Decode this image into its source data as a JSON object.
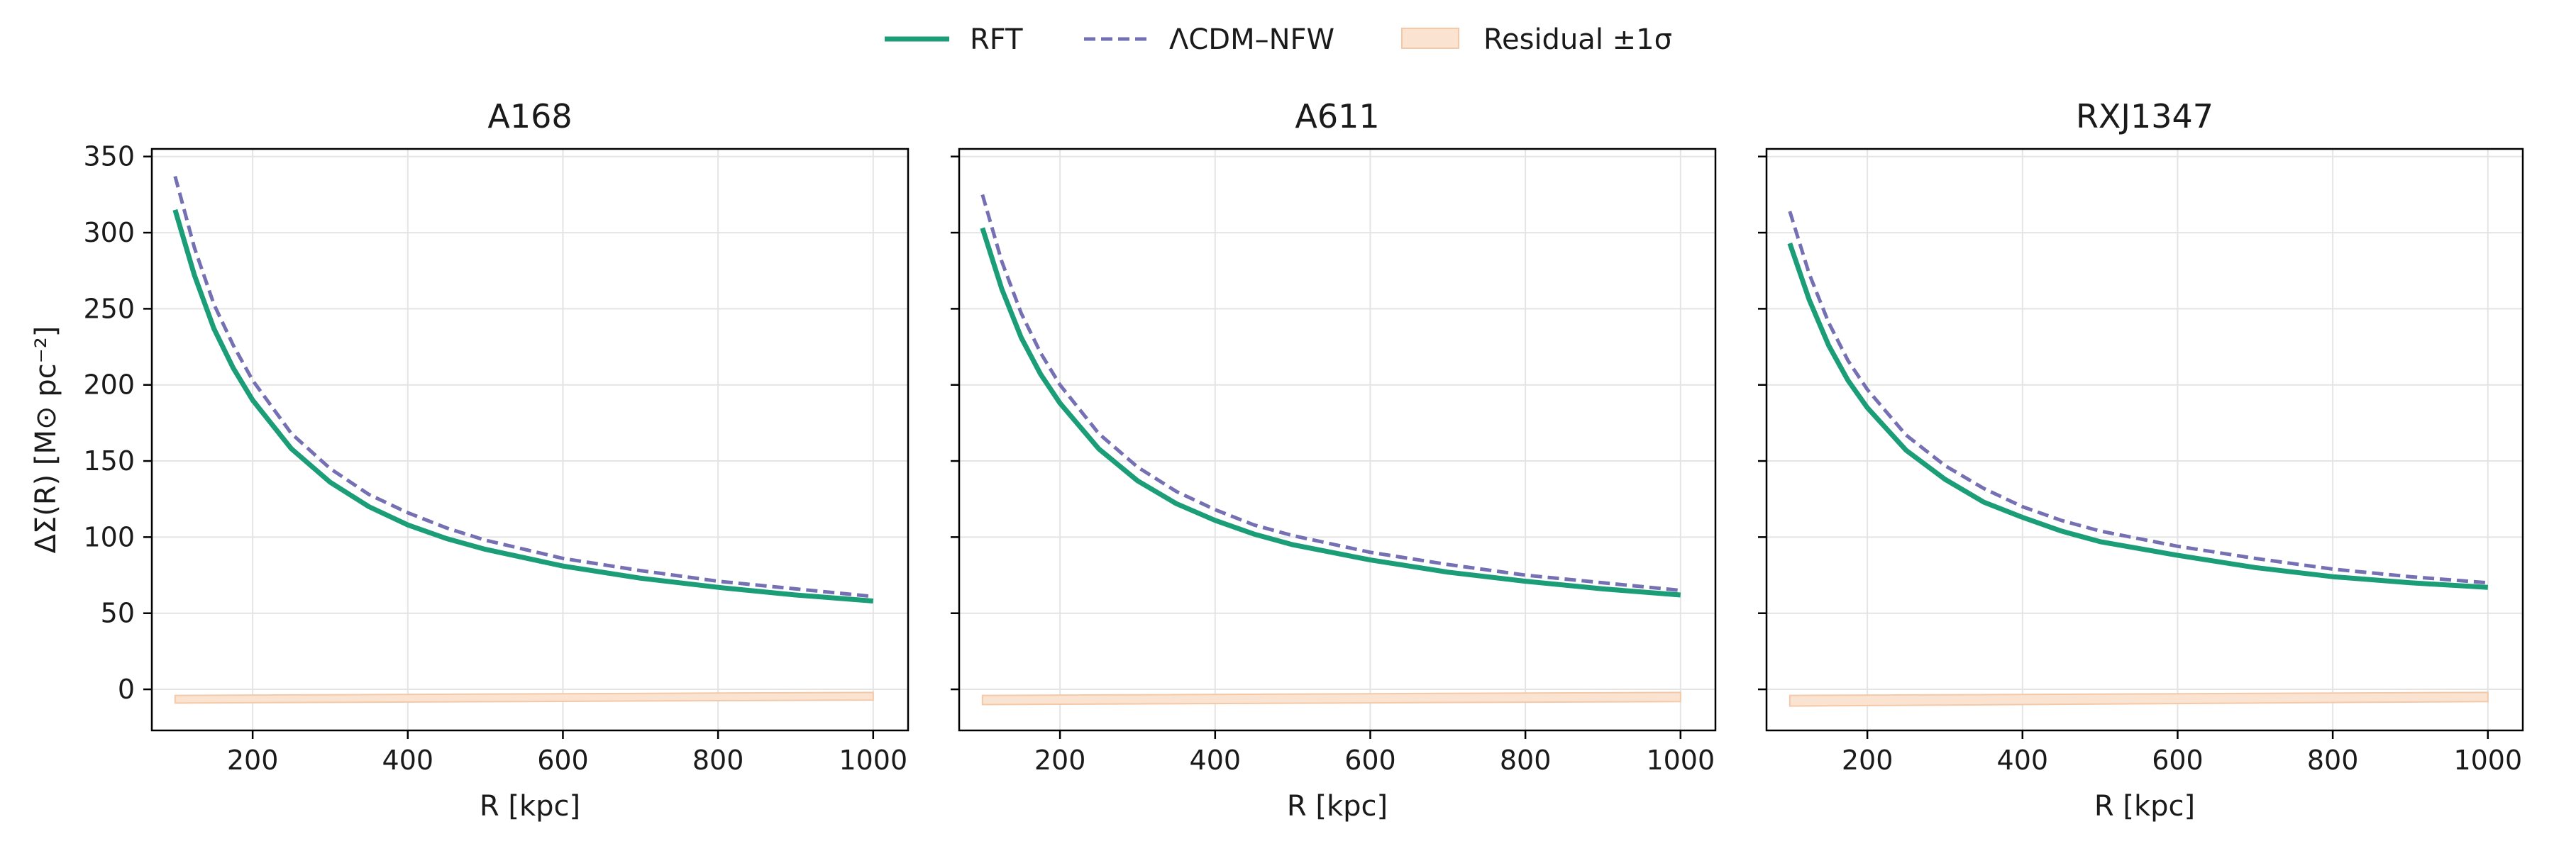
{
  "colors": {
    "rft": "#1b9e77",
    "nfw": "#7570b3",
    "band_fill": "#fbe3d2",
    "band_edge": "#f3c9a8"
  },
  "legend": {
    "items": [
      {
        "label": "RFT",
        "style": "solid"
      },
      {
        "label": "ΛCDM–NFW",
        "style": "dashed"
      },
      {
        "label": "Residual ±1σ",
        "style": "band"
      }
    ]
  },
  "chart_data": [
    {
      "type": "line",
      "title": "A168",
      "xlabel": "R [kpc]",
      "ylabel": "ΔΣ(R) [M⊙ pc⁻²]",
      "xlim": [
        70,
        1045
      ],
      "ylim": [
        -27,
        355
      ],
      "xticks": [
        200,
        400,
        600,
        800,
        1000
      ],
      "yticks": [
        0,
        50,
        100,
        150,
        200,
        250,
        300,
        350
      ],
      "grid": true,
      "x": [
        100,
        125,
        150,
        175,
        200,
        250,
        300,
        350,
        400,
        450,
        500,
        600,
        700,
        800,
        900,
        1000
      ],
      "series": [
        {
          "name": "RFT",
          "values": [
            315,
            272,
            237,
            211,
            190,
            158,
            136,
            120,
            108,
            99,
            92,
            81,
            73,
            67,
            62,
            58
          ]
        },
        {
          "name": "ΛCDM–NFW",
          "values": [
            337,
            290,
            253,
            226,
            203,
            168,
            145,
            128,
            116,
            106,
            98,
            86,
            78,
            71,
            66,
            61
          ]
        }
      ],
      "band": {
        "name": "Residual ±1σ",
        "x": [
          100,
          1000
        ],
        "lower": [
          -9,
          -7
        ],
        "upper": [
          -4,
          -2
        ]
      }
    },
    {
      "type": "line",
      "title": "A611",
      "xlabel": "R [kpc]",
      "ylabel": "",
      "xlim": [
        70,
        1045
      ],
      "ylim": [
        -27,
        355
      ],
      "xticks": [
        200,
        400,
        600,
        800,
        1000
      ],
      "yticks": [
        0,
        50,
        100,
        150,
        200,
        250,
        300,
        350
      ],
      "grid": true,
      "x": [
        100,
        125,
        150,
        175,
        200,
        250,
        300,
        350,
        400,
        450,
        500,
        600,
        700,
        800,
        900,
        1000
      ],
      "series": [
        {
          "name": "RFT",
          "values": [
            303,
            263,
            231,
            207,
            188,
            158,
            137,
            122,
            111,
            102,
            95,
            85,
            77,
            71,
            66,
            62
          ]
        },
        {
          "name": "ΛCDM–NFW",
          "values": [
            325,
            281,
            247,
            221,
            200,
            168,
            146,
            130,
            118,
            108,
            101,
            90,
            82,
            75,
            70,
            65
          ]
        }
      ],
      "band": {
        "name": "Residual ±1σ",
        "x": [
          100,
          1000
        ],
        "lower": [
          -10,
          -8
        ],
        "upper": [
          -4,
          -2
        ]
      }
    },
    {
      "type": "line",
      "title": "RXJ1347",
      "xlabel": "R [kpc]",
      "ylabel": "",
      "xlim": [
        70,
        1045
      ],
      "ylim": [
        -27,
        355
      ],
      "xticks": [
        200,
        400,
        600,
        800,
        1000
      ],
      "yticks": [
        0,
        50,
        100,
        150,
        200,
        250,
        300,
        350
      ],
      "grid": true,
      "x": [
        100,
        125,
        150,
        175,
        200,
        250,
        300,
        350,
        400,
        450,
        500,
        600,
        700,
        800,
        900,
        1000
      ],
      "series": [
        {
          "name": "RFT",
          "values": [
            293,
            256,
            226,
            203,
            185,
            157,
            138,
            123,
            113,
            104,
            97,
            88,
            80,
            74,
            70,
            67
          ]
        },
        {
          "name": "ΛCDM–NFW",
          "values": [
            314,
            273,
            241,
            216,
            197,
            167,
            147,
            132,
            120,
            111,
            104,
            94,
            86,
            79,
            74,
            70
          ]
        }
      ],
      "band": {
        "name": "Residual ±1σ",
        "x": [
          100,
          1000
        ],
        "lower": [
          -11,
          -8
        ],
        "upper": [
          -4,
          -2
        ]
      }
    }
  ]
}
